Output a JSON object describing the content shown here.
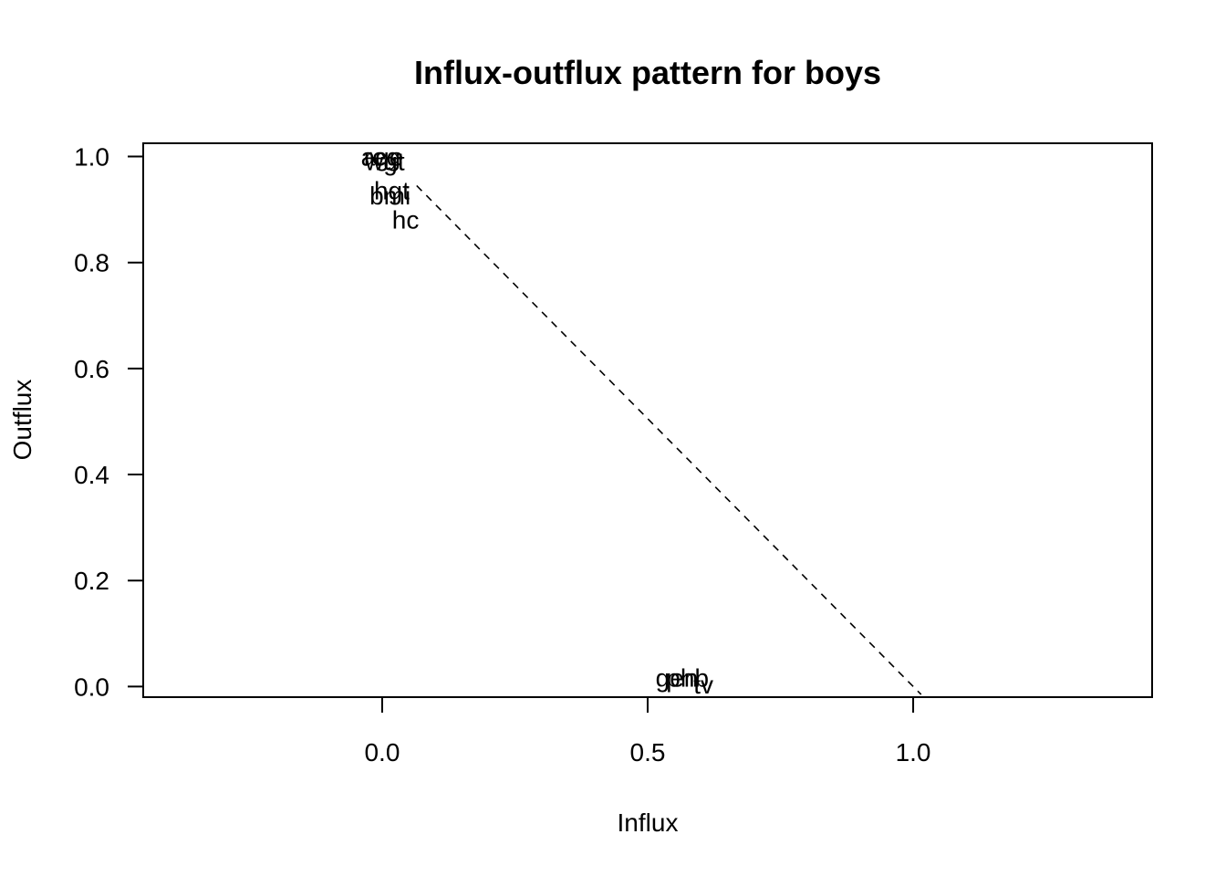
{
  "chart_data": {
    "type": "scatter",
    "title": "Influx-outflux pattern for boys",
    "xlabel": "Influx",
    "ylabel": "Outflux",
    "xlim": [
      -0.45,
      1.45
    ],
    "ylim": [
      -0.02,
      1.025
    ],
    "x_ticks": [
      {
        "value": 0.0,
        "label": "0.0"
      },
      {
        "value": 0.5,
        "label": "0.5"
      },
      {
        "value": 1.0,
        "label": "1.0"
      }
    ],
    "y_ticks": [
      {
        "value": 0.0,
        "label": "0.0"
      },
      {
        "value": 0.2,
        "label": "0.2"
      },
      {
        "value": 0.4,
        "label": "0.4"
      },
      {
        "value": 0.6,
        "label": "0.6"
      },
      {
        "value": 0.8,
        "label": "0.8"
      },
      {
        "value": 1.0,
        "label": "1.0"
      }
    ],
    "points": [
      {
        "label": "age",
        "x": 0.0,
        "y": 1.0
      },
      {
        "label": "reg",
        "x": 0.0,
        "y": 1.0
      },
      {
        "label": "wgt",
        "x": 0.005,
        "y": 0.991
      },
      {
        "label": "hgt",
        "x": 0.018,
        "y": 0.936
      },
      {
        "label": "bmi",
        "x": 0.015,
        "y": 0.927
      },
      {
        "label": "hc",
        "x": 0.044,
        "y": 0.881
      },
      {
        "label": "gen",
        "x": 0.555,
        "y": 0.017
      },
      {
        "label": "phb",
        "x": 0.575,
        "y": 0.017
      },
      {
        "label": "tv",
        "x": 0.605,
        "y": 0.004
      }
    ],
    "reference_line": {
      "x": [
        0.065,
        1.015
      ],
      "y": [
        0.945,
        -0.015
      ],
      "style": "dashed"
    },
    "grid": false,
    "legend": false
  }
}
